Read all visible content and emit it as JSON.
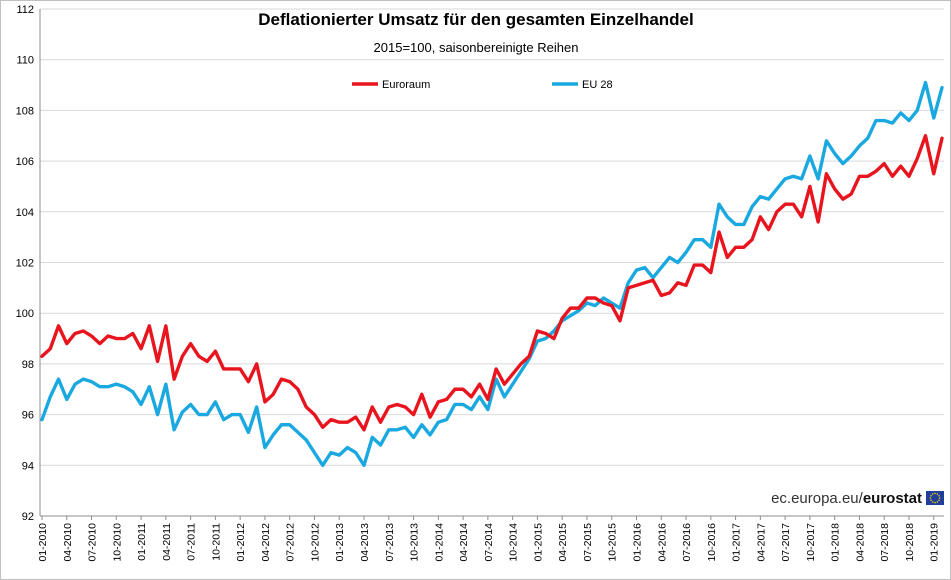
{
  "chart_data": {
    "type": "line",
    "title": "Deflationierter  Umsatz für den gesamten Einzelhandel",
    "subtitle": "2015=100, saisonbereinigte Reihen",
    "ylim": [
      92,
      112
    ],
    "yticks": [
      92,
      94,
      96,
      98,
      100,
      102,
      104,
      106,
      108,
      110,
      112
    ],
    "grid": true,
    "legend_position": "top-center",
    "x_start": "01-2010",
    "x_ticks": [
      "01-2010",
      "04-2010",
      "07-2010",
      "10-2010",
      "01-2011",
      "04-2011",
      "07-2011",
      "10-2011",
      "01-2012",
      "04-2012",
      "07-2012",
      "10-2012",
      "01-2013",
      "04-2013",
      "07-2013",
      "10-2013",
      "01-2014",
      "04-2014",
      "07-2014",
      "10-2014",
      "01-2015",
      "04-2015",
      "07-2015",
      "10-2015",
      "01-2016",
      "04-2016",
      "07-2016",
      "10-2016",
      "01-2017",
      "04-2017",
      "07-2017",
      "10-2017",
      "01-2018",
      "04-2018",
      "07-2018",
      "10-2018",
      "01-2019"
    ],
    "series": [
      {
        "name": "Euroraum",
        "color": "#e8141e",
        "values": [
          98.3,
          98.6,
          99.5,
          98.8,
          99.2,
          99.3,
          99.1,
          98.8,
          99.1,
          99.0,
          99.0,
          99.2,
          98.6,
          99.5,
          98.1,
          99.5,
          97.4,
          98.3,
          98.8,
          98.3,
          98.1,
          98.5,
          97.8,
          97.8,
          97.8,
          97.3,
          98.0,
          96.5,
          96.8,
          97.4,
          97.3,
          97.0,
          96.3,
          96.0,
          95.5,
          95.8,
          95.7,
          95.7,
          95.9,
          95.4,
          96.3,
          95.7,
          96.3,
          96.4,
          96.3,
          96.0,
          96.8,
          95.9,
          96.5,
          96.6,
          97.0,
          97.0,
          96.7,
          97.2,
          96.6,
          97.8,
          97.2,
          97.6,
          98.0,
          98.3,
          99.3,
          99.2,
          99.0,
          99.8,
          100.2,
          100.2,
          100.6,
          100.6,
          100.4,
          100.3,
          99.7,
          101.0,
          101.1,
          101.2,
          101.3,
          100.7,
          100.8,
          101.2,
          101.1,
          101.9,
          101.9,
          101.6,
          103.2,
          102.2,
          102.6,
          102.6,
          102.9,
          103.8,
          103.3,
          104.0,
          104.3,
          104.3,
          103.8,
          105.0,
          103.6,
          105.5,
          104.9,
          104.5,
          104.7,
          105.4,
          105.4,
          105.6,
          105.9,
          105.4,
          105.8,
          105.4,
          106.1,
          107.0,
          105.5,
          106.9
        ]
      },
      {
        "name": "EU 28",
        "color": "#1aa8e0",
        "values": [
          95.8,
          96.7,
          97.4,
          96.6,
          97.2,
          97.4,
          97.3,
          97.1,
          97.1,
          97.2,
          97.1,
          96.9,
          96.4,
          97.1,
          96.0,
          97.2,
          95.4,
          96.1,
          96.4,
          96.0,
          96.0,
          96.5,
          95.8,
          96.0,
          96.0,
          95.3,
          96.3,
          94.7,
          95.2,
          95.6,
          95.6,
          95.3,
          95.0,
          94.5,
          94.0,
          94.5,
          94.4,
          94.7,
          94.5,
          94.0,
          95.1,
          94.8,
          95.4,
          95.4,
          95.5,
          95.1,
          95.6,
          95.2,
          95.7,
          95.8,
          96.4,
          96.4,
          96.2,
          96.7,
          96.2,
          97.4,
          96.7,
          97.2,
          97.7,
          98.2,
          98.9,
          99.0,
          99.3,
          99.7,
          99.9,
          100.1,
          100.4,
          100.3,
          100.6,
          100.4,
          100.2,
          101.2,
          101.7,
          101.8,
          101.4,
          101.8,
          102.2,
          102.0,
          102.4,
          102.9,
          102.9,
          102.6,
          104.3,
          103.8,
          103.5,
          103.5,
          104.2,
          104.6,
          104.5,
          104.9,
          105.3,
          105.4,
          105.3,
          106.2,
          105.3,
          106.8,
          106.3,
          105.9,
          106.2,
          106.6,
          106.9,
          107.6,
          107.6,
          107.5,
          107.9,
          107.6,
          108.0,
          109.1,
          107.7,
          108.9
        ]
      }
    ]
  },
  "source": {
    "prefix": "ec.europa.eu/",
    "brand": "eurostat",
    "flag_colors": {
      "blue": "#1f3f9a",
      "stars": "#ffd700"
    }
  }
}
